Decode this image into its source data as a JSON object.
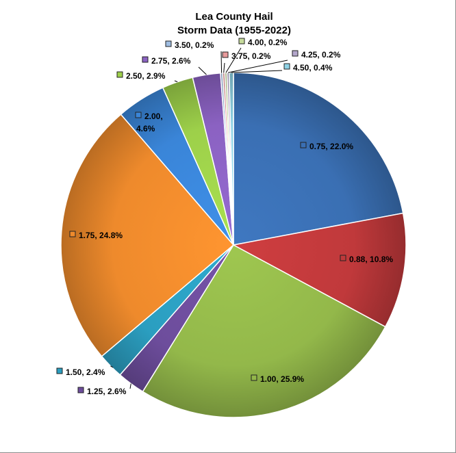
{
  "chart_data": {
    "type": "pie",
    "title": "Lea County Hail",
    "subtitle": "Storm Data (1955-2022)",
    "categories": [
      "0.75",
      "0.88",
      "1.00",
      "1.25",
      "1.50",
      "1.75",
      "2.00",
      "2.50",
      "2.75",
      "3.50",
      "3.75",
      "4.00",
      "4.25",
      "4.50"
    ],
    "values": [
      22.0,
      10.8,
      25.9,
      2.6,
      2.4,
      24.8,
      4.6,
      2.9,
      2.6,
      0.2,
      0.2,
      0.2,
      0.2,
      0.4
    ],
    "labels": [
      "0.75, 22.0%",
      "0.88, 10.8%",
      "1.00, 25.9%",
      "1.25, 2.6%",
      "1.50, 2.4%",
      "1.75, 24.8%",
      "2.00, 4.6%",
      "2.50, 2.9%",
      "2.75, 2.6%",
      "3.50, 0.2%",
      "3.75, 0.2%",
      "4.00, 0.2%",
      "4.25, 0.2%",
      "4.50, 0.4%"
    ],
    "colors": [
      "#3a6fb3",
      "#c0393b",
      "#93b84a",
      "#6d4d9c",
      "#2b9ec0",
      "#ee8a2c",
      "#3a85d8",
      "#9dd04a",
      "#8b62c2",
      "#9fbde2",
      "#e89a9b",
      "#c6db9c",
      "#b3a6cb",
      "#8fd3e6"
    ],
    "legend": "none"
  }
}
